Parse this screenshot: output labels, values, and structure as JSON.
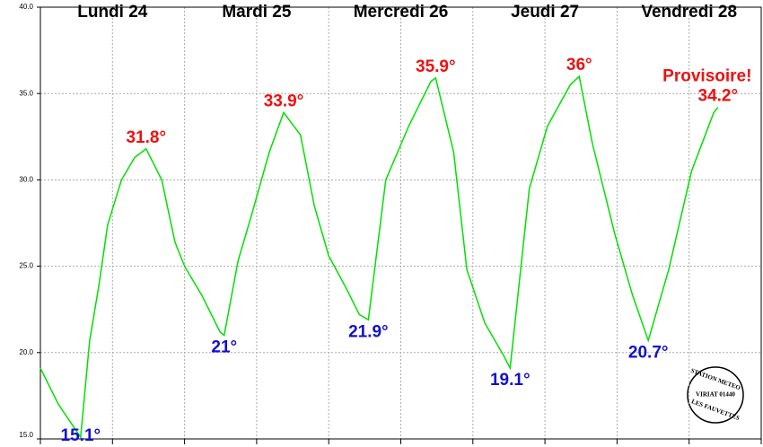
{
  "chart_data": {
    "type": "line",
    "day_labels": [
      "Lundi 24",
      "Mardi 25",
      "Mercredi 26",
      "Jeudi 27",
      "Vendredi 28"
    ],
    "xlim": [
      0,
      120
    ],
    "xticks": [
      0,
      12,
      24,
      36,
      48,
      60,
      72,
      84,
      96,
      108,
      120
    ],
    "ylim": [
      15,
      40
    ],
    "yticks": [
      {
        "value": 15,
        "label": "15.0"
      },
      {
        "value": 20,
        "label": "20.0"
      },
      {
        "value": 25,
        "label": "25.0"
      },
      {
        "value": 30,
        "label": "30.0"
      },
      {
        "value": 35,
        "label": "35.0"
      },
      {
        "value": 40,
        "label": "40.0"
      }
    ],
    "grid": true,
    "series": [
      {
        "color": "#00e000",
        "x": [
          0,
          3,
          6.7,
          8.2,
          9.7,
          11.2,
          13.5,
          15.7,
          17.6,
          20.2,
          22.4,
          24,
          26.9,
          29.9,
          30.6,
          32.9,
          35.1,
          38.1,
          40.5,
          43.3,
          45.6,
          48,
          50.8,
          53.1,
          54.6,
          57.5,
          61.3,
          65,
          65.8,
          68.8,
          71,
          74,
          77,
          78.2,
          81.4,
          84.4,
          88.2,
          89.7,
          91.9,
          95.6,
          98.6,
          101.2,
          104.6,
          108.4,
          112.1,
          112.8
        ],
        "values": [
          19.1,
          17.0,
          15.1,
          20.7,
          23.8,
          27.4,
          30.0,
          31.3,
          31.8,
          30.0,
          26.4,
          25.0,
          23.3,
          21.2,
          21.0,
          25.3,
          27.9,
          31.6,
          33.9,
          32.6,
          28.5,
          25.6,
          23.8,
          22.2,
          21.9,
          30.0,
          33.1,
          35.7,
          35.9,
          31.6,
          24.8,
          21.7,
          19.9,
          19.1,
          29.5,
          33.1,
          35.5,
          36.0,
          32.1,
          26.9,
          23.3,
          20.7,
          24.8,
          30.5,
          33.9,
          34.2
        ]
      }
    ],
    "maxima": {
      "color": "#ee1111",
      "x": [
        17.6,
        40.5,
        65.8,
        89.7,
        112.8
      ],
      "values": [
        31.8,
        33.9,
        35.9,
        36,
        34.2
      ],
      "value_labels": [
        "31.8°",
        "33.9°",
        "35.9°",
        "36°",
        "34.2°"
      ]
    },
    "minima": {
      "color": "#1111cc",
      "x": [
        6.7,
        30.6,
        54.6,
        78.2,
        101.2
      ],
      "values": [
        15.1,
        21,
        21.9,
        19.1,
        20.7
      ],
      "value_labels": [
        "15.1°",
        "21°",
        "21.9°",
        "19.1°",
        "20.7°"
      ]
    },
    "annotation": "Provisoire!",
    "stamp": [
      "STATION METEO",
      "VIRIAT 01440",
      "LES FAUVETTES"
    ]
  }
}
